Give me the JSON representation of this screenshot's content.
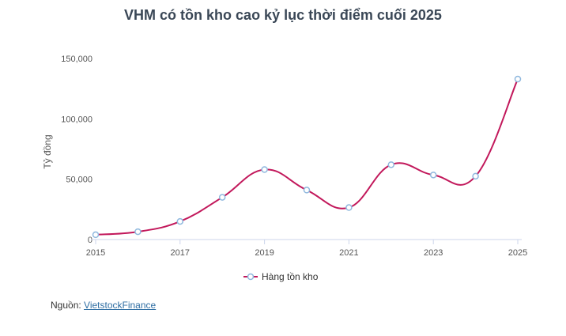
{
  "chart_data": {
    "type": "line",
    "title": "VHM có tồn kho cao kỷ lục thời điểm cuối 2025",
    "ylabel": "Tỷ đồng",
    "xlabel": "",
    "ylim": [
      0,
      150000
    ],
    "yticks": [
      "0",
      "50,000",
      "100,000",
      "150,000"
    ],
    "xtick_labels": [
      "2015",
      "2017",
      "2019",
      "2021",
      "2023",
      "2025"
    ],
    "x": [
      2015,
      2016,
      2017,
      2018,
      2019,
      2020,
      2021,
      2022,
      2023,
      2024,
      2025
    ],
    "series": [
      {
        "name": "Hàng tồn kho",
        "color": "#c2185b",
        "marker_color": "#8fb8de",
        "values": [
          4000,
          6500,
          15000,
          35000,
          58000,
          41000,
          26500,
          62000,
          53500,
          52500,
          133000
        ]
      }
    ],
    "grid": false,
    "legend_position": "bottom-center"
  },
  "source": {
    "label": "Nguồn:",
    "link_text": "VietstockFinance"
  }
}
